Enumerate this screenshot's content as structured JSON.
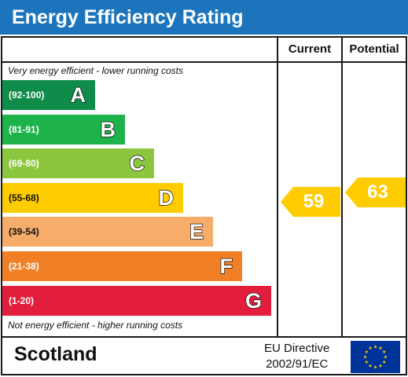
{
  "title": "Energy Efficiency Rating",
  "columns": {
    "current": "Current",
    "potential": "Potential"
  },
  "top_caption": "Very energy efficient - lower running costs",
  "bottom_caption": "Not energy efficient - higher running costs",
  "bands": [
    {
      "range": "(92-100)",
      "letter": "A",
      "color": "#0f8c4a"
    },
    {
      "range": "(81-91)",
      "letter": "B",
      "color": "#1eb24b"
    },
    {
      "range": "(69-80)",
      "letter": "C",
      "color": "#8cc63f"
    },
    {
      "range": "(55-68)",
      "letter": "D",
      "color": "#ffcc00"
    },
    {
      "range": "(39-54)",
      "letter": "E",
      "color": "#f7ad69"
    },
    {
      "range": "(21-38)",
      "letter": "F",
      "color": "#f07f25"
    },
    {
      "range": "(1-20)",
      "letter": "G",
      "color": "#e31d3c"
    }
  ],
  "ratings": {
    "current": {
      "value": "59",
      "band": "D",
      "color": "#ffcc00"
    },
    "potential": {
      "value": "63",
      "band": "D",
      "color": "#ffcc00"
    }
  },
  "footer": {
    "region": "Scotland",
    "directive_line1": "EU Directive",
    "directive_line2": "2002/91/EC",
    "flag_colors": {
      "field": "#003399",
      "stars": "#ffcc00"
    }
  }
}
